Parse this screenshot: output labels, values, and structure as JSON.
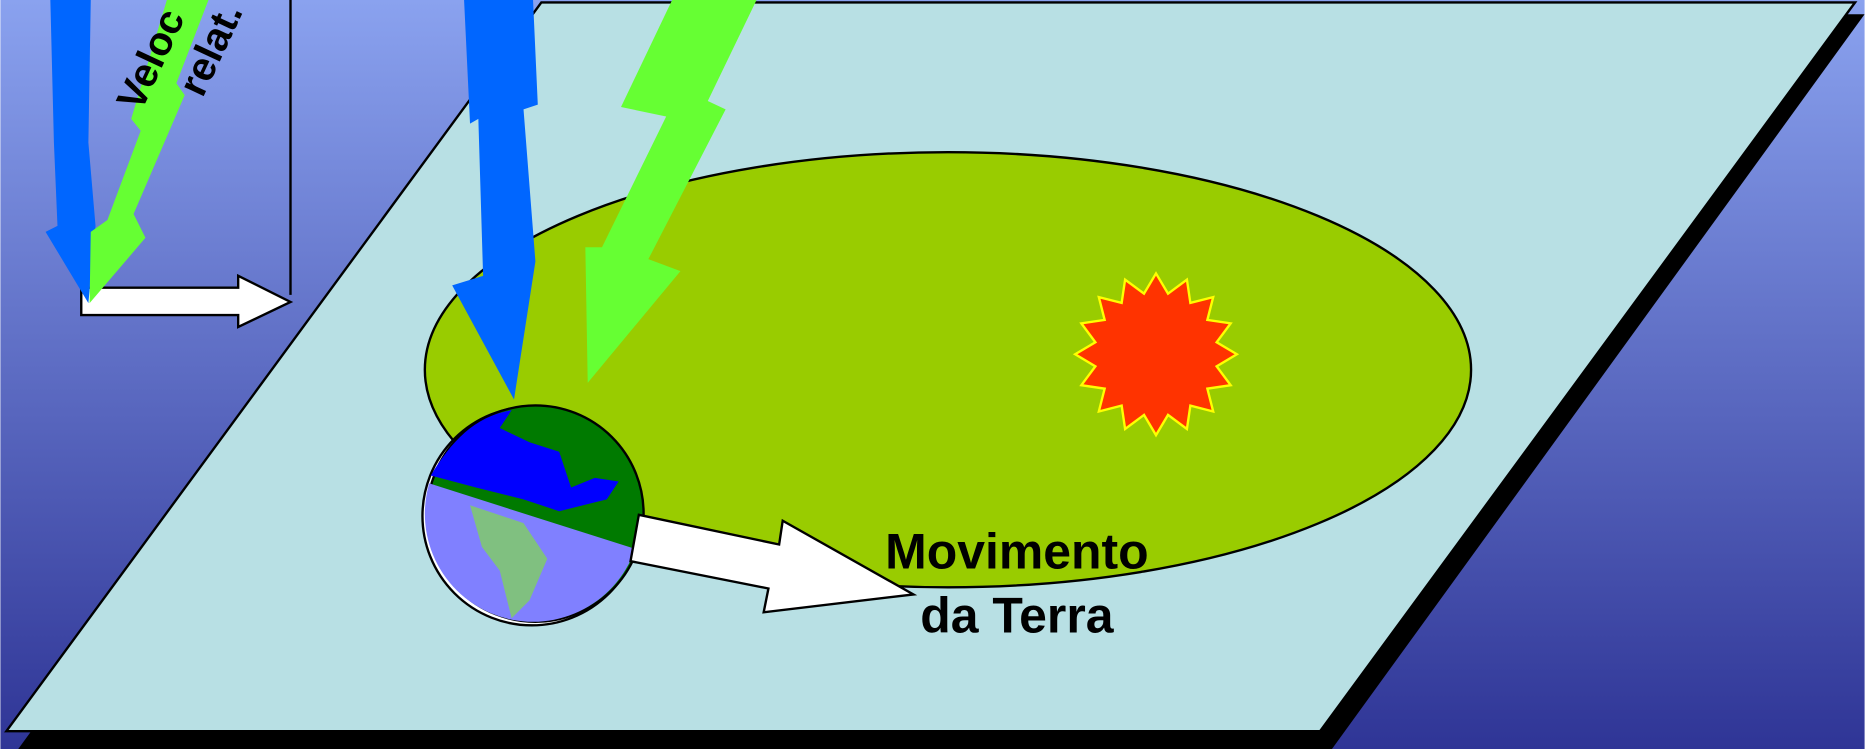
{
  "labels": {
    "rotated_line_1": "Veloc",
    "rotated_line_2": "relat.",
    "motion_line_1": "Movimento",
    "motion_line_2": "da Terra"
  }
}
